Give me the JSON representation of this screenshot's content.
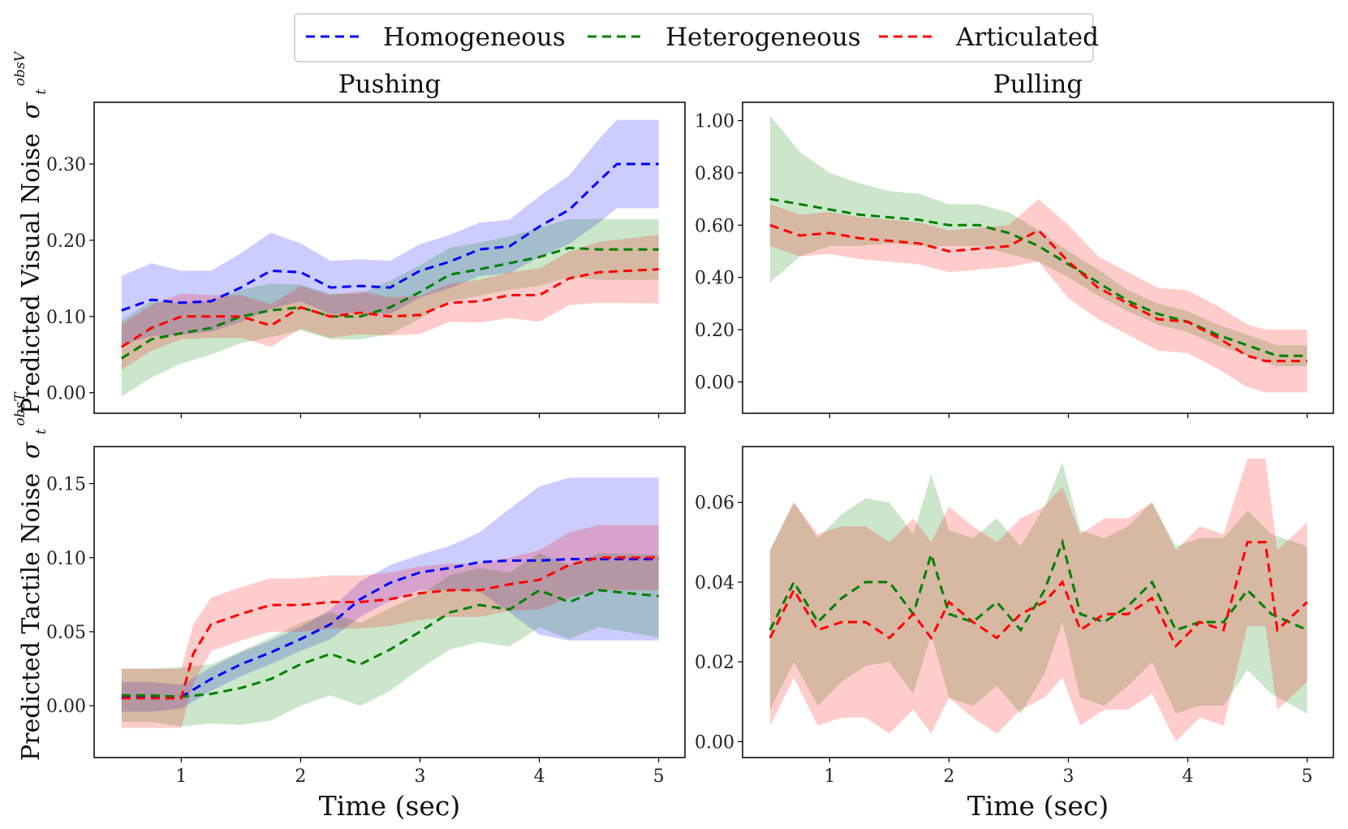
{
  "legend": {
    "items": [
      {
        "label": "Homogeneous",
        "color": "#0000ff"
      },
      {
        "label": "Heterogeneous",
        "color": "#008000"
      },
      {
        "label": "Articulated",
        "color": "#ff0000"
      }
    ]
  },
  "ylabels": {
    "visual": {
      "text": "Predicted Visual Noise",
      "symbol": "σ",
      "sub": "t",
      "sup": "obsV"
    },
    "tactile": {
      "text": "Predicted Tactile Noise",
      "symbol": "σ",
      "sub": "t",
      "sup": "obsT"
    }
  },
  "chart_data": [
    {
      "id": "push_visual",
      "type": "line",
      "title": "Pushing",
      "xlabel": "",
      "xlim": [
        0.27,
        5.22
      ],
      "ylim": [
        -0.027,
        0.381
      ],
      "yticks": [
        0.0,
        0.1,
        0.2,
        0.3
      ],
      "ytick_labels": [
        "0.00",
        "0.10",
        "0.20",
        "0.30"
      ],
      "xticks": [
        1,
        2,
        3,
        4,
        5
      ],
      "xtick_labels": [],
      "series": [
        {
          "name": "Homogeneous",
          "color": "#0000ff",
          "x": [
            0.5,
            0.75,
            1.0,
            1.25,
            1.5,
            1.75,
            2.0,
            2.25,
            2.5,
            2.75,
            3.0,
            3.25,
            3.5,
            3.75,
            4.0,
            4.25,
            4.5,
            4.65,
            5.0
          ],
          "mean": [
            0.108,
            0.122,
            0.118,
            0.12,
            0.138,
            0.16,
            0.158,
            0.138,
            0.14,
            0.138,
            0.16,
            0.172,
            0.188,
            0.192,
            0.218,
            0.24,
            0.278,
            0.3,
            0.3
          ],
          "band": [
            0.045,
            0.048,
            0.042,
            0.04,
            0.045,
            0.05,
            0.038,
            0.035,
            0.035,
            0.035,
            0.035,
            0.035,
            0.035,
            0.035,
            0.04,
            0.045,
            0.055,
            0.058,
            0.058
          ]
        },
        {
          "name": "Heterogeneous",
          "color": "#008000",
          "x": [
            0.5,
            0.75,
            1.0,
            1.25,
            1.5,
            1.75,
            2.0,
            2.25,
            2.5,
            2.75,
            3.0,
            3.25,
            3.5,
            3.75,
            4.0,
            4.25,
            4.5,
            5.0
          ],
          "mean": [
            0.045,
            0.07,
            0.078,
            0.085,
            0.1,
            0.108,
            0.112,
            0.1,
            0.1,
            0.112,
            0.132,
            0.155,
            0.162,
            0.17,
            0.178,
            0.19,
            0.188,
            0.188
          ],
          "band": [
            0.05,
            0.05,
            0.04,
            0.035,
            0.035,
            0.035,
            0.03,
            0.03,
            0.03,
            0.035,
            0.035,
            0.035,
            0.035,
            0.035,
            0.038,
            0.038,
            0.04,
            0.04
          ]
        },
        {
          "name": "Articulated",
          "color": "#ff0000",
          "x": [
            0.5,
            0.75,
            1.0,
            1.25,
            1.5,
            1.75,
            2.0,
            2.25,
            2.5,
            2.75,
            3.0,
            3.25,
            3.5,
            3.75,
            4.0,
            4.25,
            4.5,
            5.0
          ],
          "mean": [
            0.06,
            0.085,
            0.1,
            0.1,
            0.1,
            0.088,
            0.112,
            0.1,
            0.105,
            0.1,
            0.102,
            0.118,
            0.12,
            0.128,
            0.128,
            0.15,
            0.158,
            0.162
          ],
          "band": [
            0.03,
            0.03,
            0.03,
            0.028,
            0.028,
            0.028,
            0.028,
            0.028,
            0.028,
            0.025,
            0.025,
            0.025,
            0.028,
            0.03,
            0.035,
            0.035,
            0.04,
            0.045
          ]
        }
      ]
    },
    {
      "id": "pull_visual",
      "type": "line",
      "title": "Pulling",
      "xlabel": "",
      "xlim": [
        0.27,
        5.22
      ],
      "ylim": [
        -0.12,
        1.07
      ],
      "yticks": [
        0.0,
        0.2,
        0.4,
        0.6,
        0.8,
        1.0
      ],
      "ytick_labels": [
        "0.00",
        "0.20",
        "0.40",
        "0.60",
        "0.80",
        "1.00"
      ],
      "xticks": [
        1,
        2,
        3,
        4,
        5
      ],
      "xtick_labels": [],
      "series": [
        {
          "name": "Heterogeneous",
          "color": "#008000",
          "x": [
            0.5,
            0.75,
            1.0,
            1.25,
            1.5,
            1.75,
            2.0,
            2.25,
            2.5,
            2.75,
            3.0,
            3.25,
            3.5,
            3.75,
            4.0,
            4.25,
            4.5,
            4.75,
            5.0
          ],
          "mean": [
            0.7,
            0.68,
            0.66,
            0.64,
            0.63,
            0.62,
            0.6,
            0.6,
            0.57,
            0.52,
            0.45,
            0.38,
            0.31,
            0.26,
            0.23,
            0.18,
            0.14,
            0.1,
            0.1
          ],
          "band": [
            0.32,
            0.2,
            0.14,
            0.12,
            0.1,
            0.1,
            0.08,
            0.08,
            0.08,
            0.06,
            0.05,
            0.05,
            0.04,
            0.04,
            0.04,
            0.04,
            0.04,
            0.04,
            0.04
          ]
        },
        {
          "name": "Articulated",
          "color": "#ff0000",
          "x": [
            0.5,
            0.75,
            1.0,
            1.25,
            1.5,
            1.75,
            2.0,
            2.25,
            2.5,
            2.75,
            3.0,
            3.25,
            3.5,
            3.75,
            4.0,
            4.25,
            4.5,
            4.65,
            5.0
          ],
          "mean": [
            0.6,
            0.56,
            0.57,
            0.55,
            0.54,
            0.53,
            0.5,
            0.51,
            0.52,
            0.58,
            0.46,
            0.36,
            0.3,
            0.24,
            0.23,
            0.17,
            0.1,
            0.08,
            0.08
          ],
          "band": [
            0.08,
            0.08,
            0.08,
            0.08,
            0.08,
            0.08,
            0.08,
            0.08,
            0.08,
            0.12,
            0.14,
            0.12,
            0.12,
            0.12,
            0.12,
            0.12,
            0.12,
            0.12,
            0.12
          ]
        }
      ]
    },
    {
      "id": "push_tactile",
      "type": "line",
      "title": "",
      "xlabel": "Time (sec)",
      "xlim": [
        0.27,
        5.22
      ],
      "ylim": [
        -0.035,
        0.175
      ],
      "yticks": [
        0.0,
        0.05,
        0.1,
        0.15
      ],
      "ytick_labels": [
        "0.00",
        "0.05",
        "0.10",
        "0.15"
      ],
      "xticks": [
        1,
        2,
        3,
        4,
        5
      ],
      "xtick_labels": [
        "1",
        "2",
        "3",
        "4",
        "5"
      ],
      "series": [
        {
          "name": "Homogeneous",
          "color": "#0000ff",
          "x": [
            0.5,
            0.75,
            1.0,
            1.25,
            1.5,
            1.75,
            2.0,
            2.25,
            2.5,
            2.75,
            3.0,
            3.25,
            3.5,
            3.75,
            4.0,
            4.25,
            4.5,
            5.0
          ],
          "mean": [
            0.006,
            0.006,
            0.006,
            0.018,
            0.028,
            0.036,
            0.045,
            0.055,
            0.072,
            0.083,
            0.09,
            0.093,
            0.097,
            0.098,
            0.098,
            0.099,
            0.099,
            0.099
          ],
          "band": [
            0.01,
            0.01,
            0.008,
            0.008,
            0.008,
            0.008,
            0.008,
            0.01,
            0.012,
            0.012,
            0.012,
            0.015,
            0.02,
            0.035,
            0.05,
            0.055,
            0.055,
            0.055
          ]
        },
        {
          "name": "Heterogeneous",
          "color": "#008000",
          "x": [
            0.5,
            0.75,
            1.0,
            1.25,
            1.5,
            1.75,
            2.0,
            2.25,
            2.5,
            2.75,
            3.0,
            3.25,
            3.5,
            3.75,
            4.0,
            4.25,
            4.5,
            5.0
          ],
          "mean": [
            0.007,
            0.007,
            0.006,
            0.008,
            0.012,
            0.018,
            0.028,
            0.035,
            0.028,
            0.038,
            0.05,
            0.063,
            0.068,
            0.065,
            0.078,
            0.07,
            0.078,
            0.074
          ],
          "band": [
            0.018,
            0.018,
            0.02,
            0.02,
            0.025,
            0.028,
            0.028,
            0.028,
            0.028,
            0.028,
            0.025,
            0.025,
            0.025,
            0.025,
            0.025,
            0.025,
            0.025,
            0.028
          ]
        },
        {
          "name": "Articulated",
          "color": "#ff0000",
          "x": [
            0.5,
            0.75,
            1.0,
            1.1,
            1.25,
            1.5,
            1.75,
            2.0,
            2.25,
            2.5,
            2.75,
            3.0,
            3.25,
            3.5,
            3.75,
            4.0,
            4.25,
            4.5,
            5.0
          ],
          "mean": [
            0.005,
            0.005,
            0.005,
            0.035,
            0.055,
            0.062,
            0.068,
            0.068,
            0.07,
            0.07,
            0.072,
            0.076,
            0.078,
            0.078,
            0.082,
            0.085,
            0.095,
            0.1,
            0.1
          ],
          "band": [
            0.02,
            0.02,
            0.02,
            0.02,
            0.018,
            0.018,
            0.018,
            0.018,
            0.018,
            0.018,
            0.018,
            0.018,
            0.018,
            0.018,
            0.018,
            0.02,
            0.022,
            0.022,
            0.022
          ]
        }
      ]
    },
    {
      "id": "pull_tactile",
      "type": "line",
      "title": "",
      "xlabel": "Time (sec)",
      "xlim": [
        0.27,
        5.22
      ],
      "ylim": [
        -0.004,
        0.074
      ],
      "yticks": [
        0.0,
        0.02,
        0.04,
        0.06
      ],
      "ytick_labels": [
        "0.00",
        "0.02",
        "0.04",
        "0.06"
      ],
      "xticks": [
        1,
        2,
        3,
        4,
        5
      ],
      "xtick_labels": [
        "1",
        "2",
        "3",
        "4",
        "5"
      ],
      "series": [
        {
          "name": "Heterogeneous",
          "color": "#008000",
          "x": [
            0.5,
            0.7,
            0.9,
            1.1,
            1.3,
            1.5,
            1.7,
            1.85,
            2.0,
            2.2,
            2.4,
            2.6,
            2.8,
            2.95,
            3.1,
            3.3,
            3.5,
            3.7,
            3.9,
            4.1,
            4.3,
            4.5,
            4.7,
            5.0
          ],
          "mean": [
            0.028,
            0.04,
            0.03,
            0.036,
            0.04,
            0.04,
            0.032,
            0.047,
            0.032,
            0.03,
            0.035,
            0.028,
            0.038,
            0.05,
            0.032,
            0.03,
            0.034,
            0.04,
            0.028,
            0.03,
            0.03,
            0.038,
            0.032,
            0.028
          ],
          "band": [
            0.02,
            0.02,
            0.021,
            0.021,
            0.021,
            0.02,
            0.02,
            0.02,
            0.021,
            0.021,
            0.021,
            0.021,
            0.021,
            0.02,
            0.021,
            0.021,
            0.02,
            0.02,
            0.021,
            0.021,
            0.021,
            0.02,
            0.02,
            0.021
          ]
        },
        {
          "name": "Articulated",
          "color": "#ff0000",
          "x": [
            0.5,
            0.7,
            0.9,
            1.1,
            1.3,
            1.5,
            1.7,
            1.85,
            2.0,
            2.2,
            2.4,
            2.6,
            2.8,
            2.95,
            3.1,
            3.3,
            3.5,
            3.7,
            3.9,
            4.1,
            4.3,
            4.5,
            4.65,
            4.75,
            5.0
          ],
          "mean": [
            0.026,
            0.038,
            0.028,
            0.03,
            0.03,
            0.026,
            0.032,
            0.026,
            0.035,
            0.03,
            0.026,
            0.032,
            0.035,
            0.04,
            0.028,
            0.032,
            0.032,
            0.036,
            0.024,
            0.03,
            0.028,
            0.05,
            0.05,
            0.028,
            0.035
          ],
          "band": [
            0.022,
            0.022,
            0.024,
            0.024,
            0.024,
            0.024,
            0.024,
            0.024,
            0.024,
            0.024,
            0.024,
            0.024,
            0.024,
            0.024,
            0.024,
            0.024,
            0.024,
            0.024,
            0.024,
            0.024,
            0.024,
            0.021,
            0.021,
            0.02,
            0.02
          ]
        }
      ]
    }
  ]
}
